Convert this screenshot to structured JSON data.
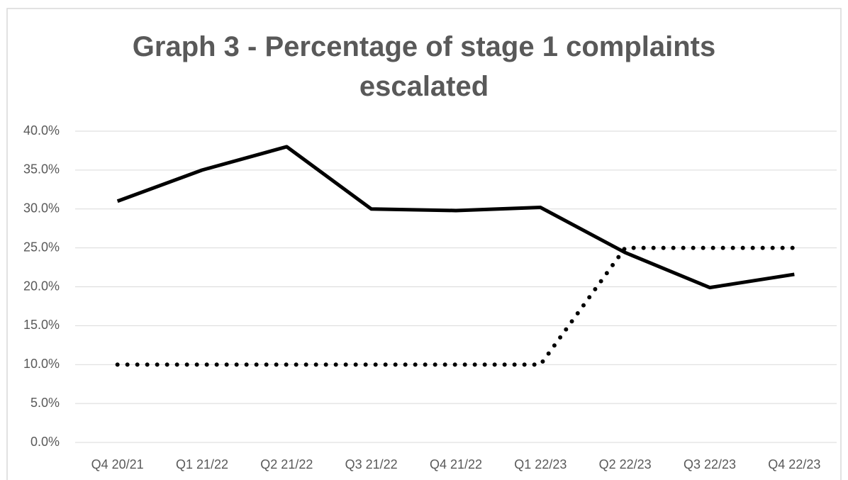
{
  "chart_data": {
    "type": "line",
    "title": "Graph 3 - Percentage of stage 1 complaints escalated",
    "categories": [
      "Q4 20/21",
      "Q1 21/22",
      "Q2 21/22",
      "Q3 21/22",
      "Q4 21/22",
      "Q1 22/23",
      "Q2 22/23",
      "Q3 22/23",
      "Q4 22/23"
    ],
    "series": [
      {
        "color": "#000000",
        "dash": "solid",
        "values": [
          31,
          35,
          38,
          30,
          29.8,
          30.2,
          24.4,
          19.9,
          21.6
        ]
      },
      {
        "color": "#000000",
        "dash": "dotted",
        "values": [
          10,
          10,
          10,
          10,
          10,
          10,
          25,
          25,
          25
        ]
      }
    ],
    "ylim": [
      0,
      40
    ],
    "yticks": [
      {
        "value": 0,
        "label": "0.0%"
      },
      {
        "value": 5,
        "label": "5.0%"
      },
      {
        "value": 10,
        "label": "10.0%"
      },
      {
        "value": 15,
        "label": "15.0%"
      },
      {
        "value": 20,
        "label": "20.0%"
      },
      {
        "value": 25,
        "label": "25.0%"
      },
      {
        "value": 30,
        "label": "30.0%"
      },
      {
        "value": 35,
        "label": "35.0%"
      },
      {
        "value": 40,
        "label": "40.0%"
      }
    ],
    "grid": true
  }
}
